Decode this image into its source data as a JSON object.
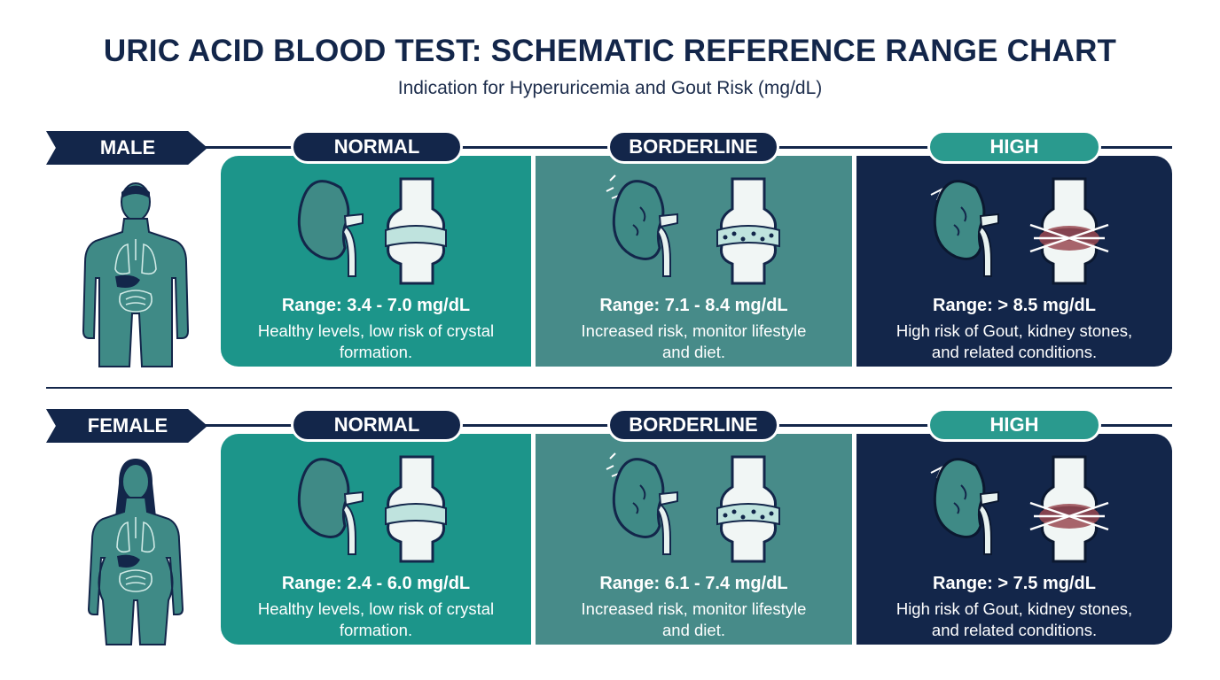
{
  "title": "URIC ACID BLOOD TEST: SCHEMATIC REFERENCE RANGE CHART",
  "subtitle": "Indication for Hyperuricemia and Gout Risk (mg/dL)",
  "colors": {
    "navy": "#13264a",
    "normal": "#1c958a",
    "borderline": "#478b89",
    "high": "#13264a",
    "high_pill": "#2a9a8e"
  },
  "sections": [
    {
      "gender": "MALE",
      "normal": {
        "label": "NORMAL",
        "range": "Range: 3.4 - 7.0 mg/dL",
        "desc": "Healthy levels, low risk of crystal formation."
      },
      "borderline": {
        "label": "BORDERLINE",
        "range": "Range: 7.1 - 8.4 mg/dL",
        "desc": "Increased risk, monitor lifestyle and diet."
      },
      "high": {
        "label": "HIGH",
        "range": "Range: > 8.5 mg/dL",
        "desc": "High risk of Gout, kidney stones, and related conditions."
      }
    },
    {
      "gender": "FEMALE",
      "normal": {
        "label": "NORMAL",
        "range": "Range: 2.4 - 6.0 mg/dL",
        "desc": "Healthy levels, low risk of crystal formation."
      },
      "borderline": {
        "label": "BORDERLINE",
        "range": "Range: 6.1 - 7.4 mg/dL",
        "desc": "Increased risk, monitor lifestyle and diet."
      },
      "high": {
        "label": "HIGH",
        "range": "Range: > 7.5 mg/dL",
        "desc": "High risk of Gout, kidney stones, and related conditions."
      }
    }
  ],
  "icons": [
    "male-body-icon",
    "female-body-icon",
    "kidney-icon",
    "joint-icon",
    "inflamed-kidney-icon",
    "crystal-joint-icon",
    "painful-joint-icon"
  ]
}
